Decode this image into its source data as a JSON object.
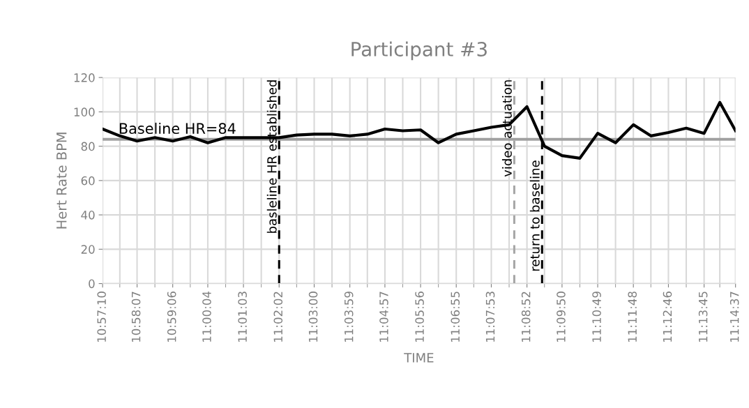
{
  "chart_data": {
    "type": "line",
    "title": "Participant #3",
    "xlabel": "TIME",
    "ylabel": "Hert Rate BPM",
    "x": [
      10.95278,
      10.96069,
      10.96861,
      10.97681,
      10.985,
      10.99306,
      11.00111,
      11.00931,
      11.0175,
      11.02569,
      11.03389,
      11.04194,
      11.05,
      11.05819,
      11.06639,
      11.07444,
      11.0825,
      11.09069,
      11.09889,
      11.10708,
      11.11528,
      11.12333,
      11.13139,
      11.13958,
      11.14778,
      11.15583,
      11.16389,
      11.17208,
      11.18028,
      11.18847,
      11.19667,
      11.20472,
      11.21278,
      11.22097,
      11.22917,
      11.23639,
      11.24361
    ],
    "series": [
      {
        "color": "#000000",
        "values": [
          90,
          86,
          83,
          85,
          83,
          85.5,
          82,
          85,
          85,
          85,
          85,
          86.5,
          87,
          87,
          86,
          87,
          90,
          89,
          89.5,
          82,
          87,
          89,
          91,
          92.5,
          103,
          80,
          74.5,
          73,
          87.5,
          82,
          92.5,
          86,
          88,
          90.5,
          87.5,
          105.5,
          89
        ]
      }
    ],
    "xlim": [
      10.95278,
      11.24361
    ],
    "xticks": [
      {
        "value": 10.95278,
        "label": "10:57:10"
      },
      {
        "value": 10.96861,
        "label": "10:58:07"
      },
      {
        "value": 10.985,
        "label": "10:59:06"
      },
      {
        "value": 11.00111,
        "label": "11:00:04"
      },
      {
        "value": 11.0175,
        "label": "11:01:03"
      },
      {
        "value": 11.03389,
        "label": "11:02:02"
      },
      {
        "value": 11.05,
        "label": "11:03:00"
      },
      {
        "value": 11.06639,
        "label": "11:03:59"
      },
      {
        "value": 11.0825,
        "label": "11:04:57"
      },
      {
        "value": 11.09889,
        "label": "11:05:56"
      },
      {
        "value": 11.11528,
        "label": "11:06:55"
      },
      {
        "value": 11.13139,
        "label": "11:07:53"
      },
      {
        "value": 11.14778,
        "label": "11:08:52"
      },
      {
        "value": 11.16389,
        "label": "11:09:50"
      },
      {
        "value": 11.18028,
        "label": "11:10:49"
      },
      {
        "value": 11.19667,
        "label": "11:11:48"
      },
      {
        "value": 11.21278,
        "label": "11:12:46"
      },
      {
        "value": 11.22917,
        "label": "11:13:45"
      },
      {
        "value": 11.24361,
        "label": "11:14:37"
      }
    ],
    "ylim": [
      0,
      120
    ],
    "yticks": [
      0,
      20,
      40,
      60,
      80,
      100,
      120
    ],
    "grid": true,
    "marker": "none",
    "line_style": "solid",
    "ref_lines": [
      {
        "axis": "y",
        "value": 84,
        "label": "Baseline HR=84",
        "color": "#a0a0a0",
        "line_style": "solid"
      },
      {
        "axis": "x",
        "value": 11.03389,
        "label": "basleline HR established",
        "color": "#000000",
        "line_style": "dashed"
      },
      {
        "axis": "x",
        "value": 11.14194,
        "label": "video actuation",
        "color": "#a6a6a6",
        "line_style": "dashed"
      },
      {
        "axis": "x",
        "value": 11.15472,
        "label": "return to baseline",
        "color": "#000000",
        "line_style": "dashed"
      }
    ]
  }
}
